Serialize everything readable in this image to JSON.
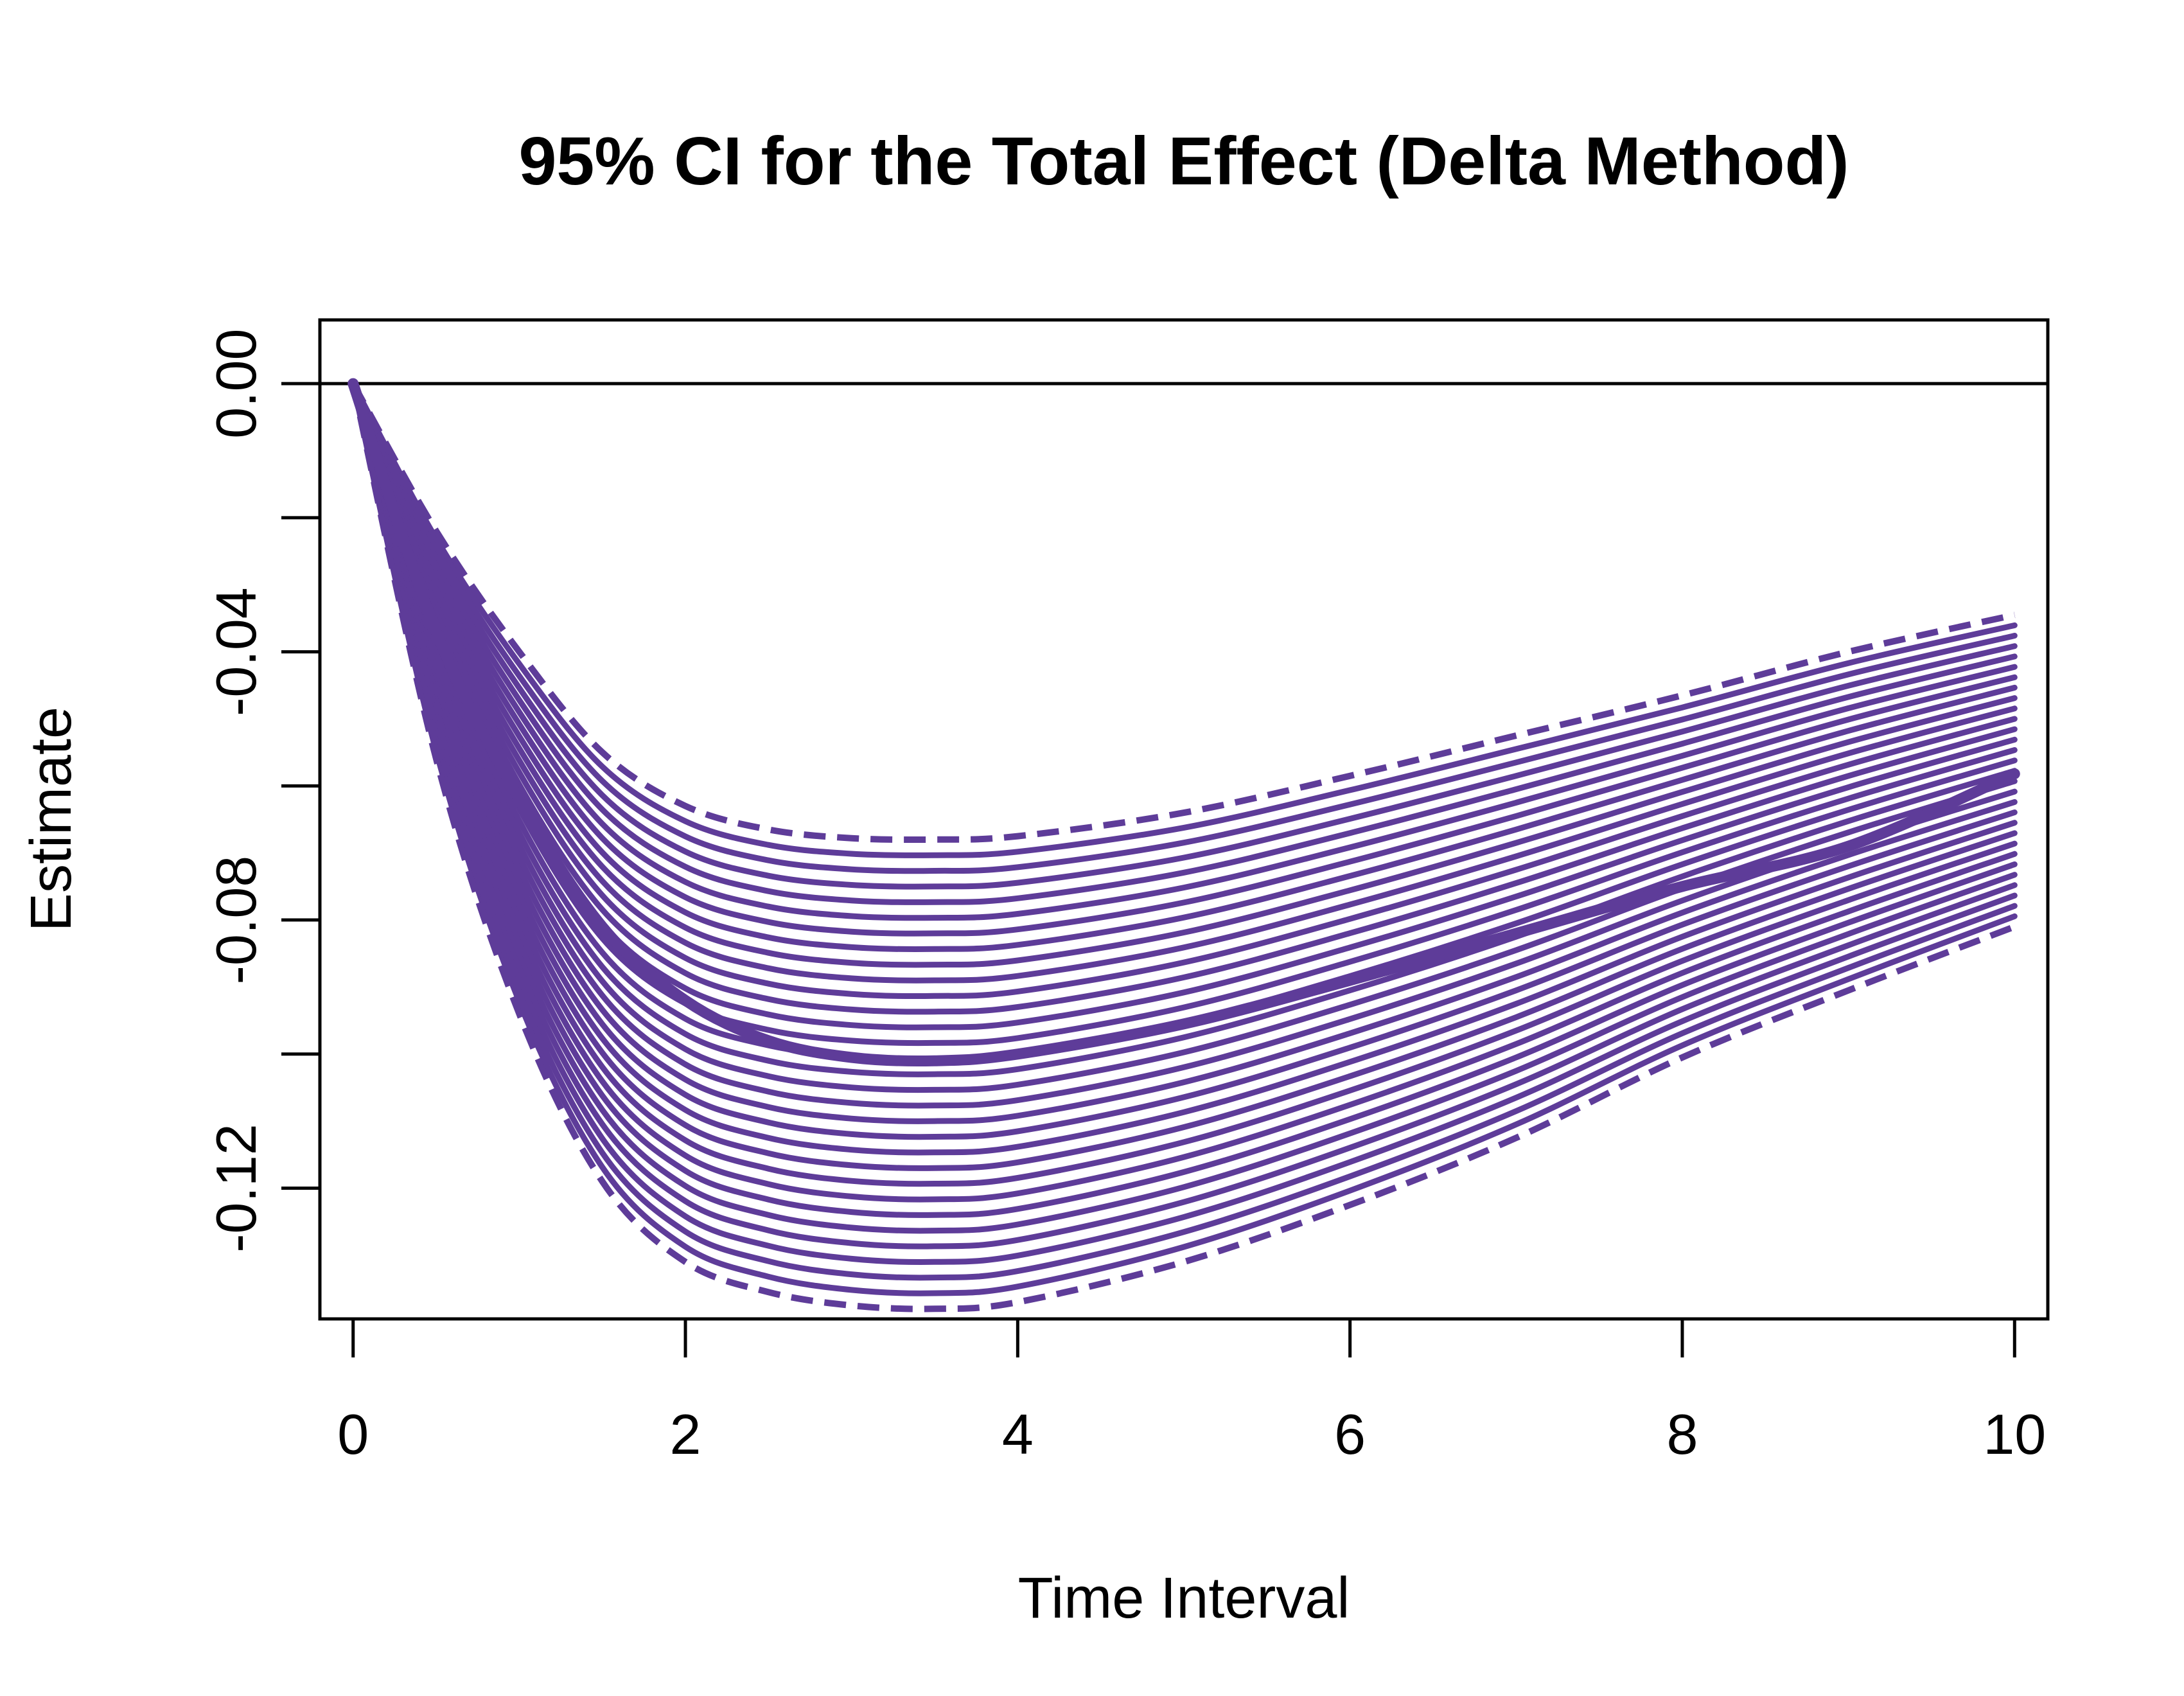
{
  "chart_data": {
    "type": "line",
    "title": "95% CI for the Total Effect (Delta Method)",
    "xlabel": "Time Interval",
    "ylabel": "Estimate",
    "xlim": [
      -0.2,
      10.2
    ],
    "ylim": [
      -0.1395,
      0.0095
    ],
    "xticks": [
      0,
      2,
      4,
      6,
      8,
      10
    ],
    "xtick_labels": [
      "0",
      "2",
      "4",
      "6",
      "8",
      "10"
    ],
    "yticks": [
      0.0,
      -0.02,
      -0.04,
      -0.06,
      -0.08,
      -0.1,
      -0.12
    ],
    "ytick_labels": [
      "0.00",
      "",
      "-0.04",
      "",
      "-0.08",
      "",
      "-0.12"
    ],
    "reference_line_y": 0,
    "grid": false,
    "line_color": "#5e3c99",
    "estimate_curve": {
      "x": [
        0,
        0.5,
        1,
        1.5,
        2,
        2.5,
        3,
        3.5,
        4,
        5,
        6,
        7,
        8,
        9,
        10
      ],
      "y": [
        0,
        -0.037,
        -0.062,
        -0.081,
        -0.092,
        -0.098,
        -0.1005,
        -0.101,
        -0.1,
        -0.0955,
        -0.089,
        -0.082,
        -0.075,
        -0.069,
        -0.0582
      ]
    },
    "lower_bound_curve": {
      "x": [
        0,
        0.5,
        1,
        1.5,
        2,
        2.5,
        3,
        3.5,
        4,
        5,
        6,
        7,
        8,
        9,
        10
      ],
      "y": [
        0,
        -0.056,
        -0.094,
        -0.119,
        -0.131,
        -0.1355,
        -0.1375,
        -0.138,
        -0.137,
        -0.131,
        -0.1225,
        -0.1125,
        -0.1005,
        -0.0905,
        -0.081
      ]
    },
    "upper_bound_curve": {
      "x": [
        0,
        0.5,
        1,
        1.5,
        2,
        2.5,
        3,
        3.5,
        4,
        5,
        6,
        7,
        8,
        9,
        10
      ],
      "y": [
        0,
        -0.022,
        -0.04,
        -0.055,
        -0.063,
        -0.0665,
        -0.0678,
        -0.068,
        -0.0675,
        -0.064,
        -0.0585,
        -0.0525,
        -0.0465,
        -0.04,
        -0.0345
      ]
    },
    "band_curve_count": 31
  }
}
